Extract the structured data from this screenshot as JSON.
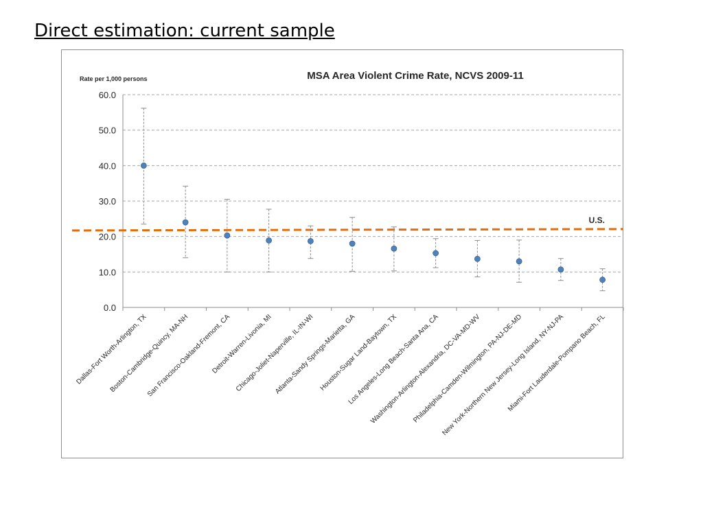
{
  "slide": {
    "title": "Direct estimation: current sample"
  },
  "colors": {
    "point": "#4f81bd",
    "reference": "#e46c0a",
    "grid": "#a6a6a6",
    "error_bar": "#8c8c8c"
  },
  "chart_data": {
    "type": "scatter",
    "title": "MSA Area Violent Crime Rate, NCVS 2009-11",
    "ylabel": "Rate per 1,000 persons",
    "xlabel": "",
    "ylim": [
      0,
      60
    ],
    "yticks": [
      "0.0",
      "10.0",
      "20.0",
      "30.0",
      "40.0",
      "50.0",
      "60.0"
    ],
    "grid": true,
    "categories": [
      "Dallas-Fort Worth-Arlington, TX",
      "Boston-Cambridge-Quincy, MA-NH",
      "San Francisco-Oakland-Fremont, CA",
      "Detroit-Warren-Livonia, MI",
      "Chicago-Joliet-Naperville, IL-IN-WI",
      "Atlanta-Sandy Springs-Marietta, GA",
      "Houston-Sugar Land-Baytown, TX",
      "Los Angeles-Long Beach-Santa Ana, CA",
      "Washington-Arlington-Alexandria, DC-VA-MD-WV",
      "Philadelphia-Camden-Wilmington, PA-NJ-DE-MD",
      "New York-Northern New Jersey-Long Island, NY-NJ-PA",
      "Miami-Fort Lauderdale-Pompano Beach, FL"
    ],
    "values": [
      40.0,
      24.0,
      20.3,
      18.9,
      18.7,
      18.0,
      16.6,
      15.3,
      13.7,
      13.0,
      10.7,
      7.8
    ],
    "lower": [
      23.5,
      14.0,
      10.0,
      10.0,
      13.8,
      10.2,
      10.3,
      11.2,
      8.6,
      7.1,
      7.6,
      4.7
    ],
    "upper": [
      56.2,
      34.2,
      30.5,
      27.7,
      23.0,
      25.4,
      22.7,
      19.4,
      18.9,
      19.0,
      13.8,
      10.9
    ],
    "reference": {
      "label": "U.S.",
      "start": 21.7,
      "end": 22.1
    }
  }
}
